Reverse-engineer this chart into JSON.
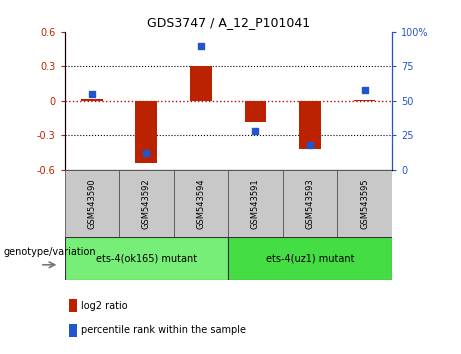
{
  "title": "GDS3747 / A_12_P101041",
  "samples": [
    "GSM543590",
    "GSM543592",
    "GSM543594",
    "GSM543591",
    "GSM543593",
    "GSM543595"
  ],
  "log2_ratio": [
    0.02,
    -0.54,
    0.3,
    -0.18,
    -0.42,
    0.01
  ],
  "percentile_rank": [
    55,
    12,
    90,
    28,
    18,
    58
  ],
  "groups": [
    {
      "label": "ets-4(ok165) mutant",
      "samples": [
        0,
        1,
        2
      ],
      "color": "#77ee77"
    },
    {
      "label": "ets-4(uz1) mutant",
      "samples": [
        3,
        4,
        5
      ],
      "color": "#44dd44"
    }
  ],
  "ylim_left": [
    -0.6,
    0.6
  ],
  "ylim_right": [
    0,
    100
  ],
  "yticks_left": [
    -0.6,
    -0.3,
    0.0,
    0.3,
    0.6
  ],
  "yticks_right": [
    0,
    25,
    50,
    75,
    100
  ],
  "bar_color": "#bb2200",
  "dot_color": "#2255cc",
  "zero_line_color": "#cc0000",
  "grid_color": "black",
  "bg_plot": "white",
  "bg_sample_labels": "#c8c8c8",
  "legend_bar_label": "log2 ratio",
  "legend_dot_label": "percentile rank within the sample",
  "xlabel_group": "genotype/variation",
  "bar_width": 0.4,
  "dot_size": 18,
  "title_fontsize": 9,
  "tick_fontsize": 7,
  "label_fontsize": 7,
  "legend_fontsize": 7,
  "sample_fontsize": 6
}
